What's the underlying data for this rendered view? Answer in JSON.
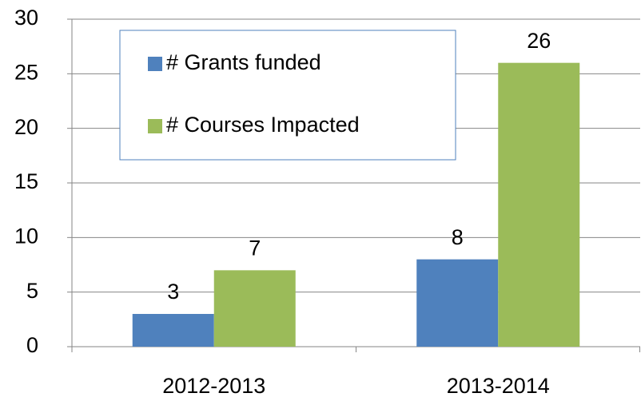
{
  "chart_data": {
    "type": "bar",
    "categories": [
      "2012-2013",
      "2013-2014"
    ],
    "series": [
      {
        "name": "# Grants funded",
        "color": "#4f81bd",
        "values": [
          3,
          8
        ]
      },
      {
        "name": "# Courses Impacted",
        "color": "#9bbb59",
        "values": [
          7,
          26
        ]
      }
    ],
    "ylim": [
      0,
      30
    ],
    "yticks": [
      0,
      5,
      10,
      15,
      20,
      25,
      30
    ],
    "grid": true,
    "legend": "top-left"
  }
}
